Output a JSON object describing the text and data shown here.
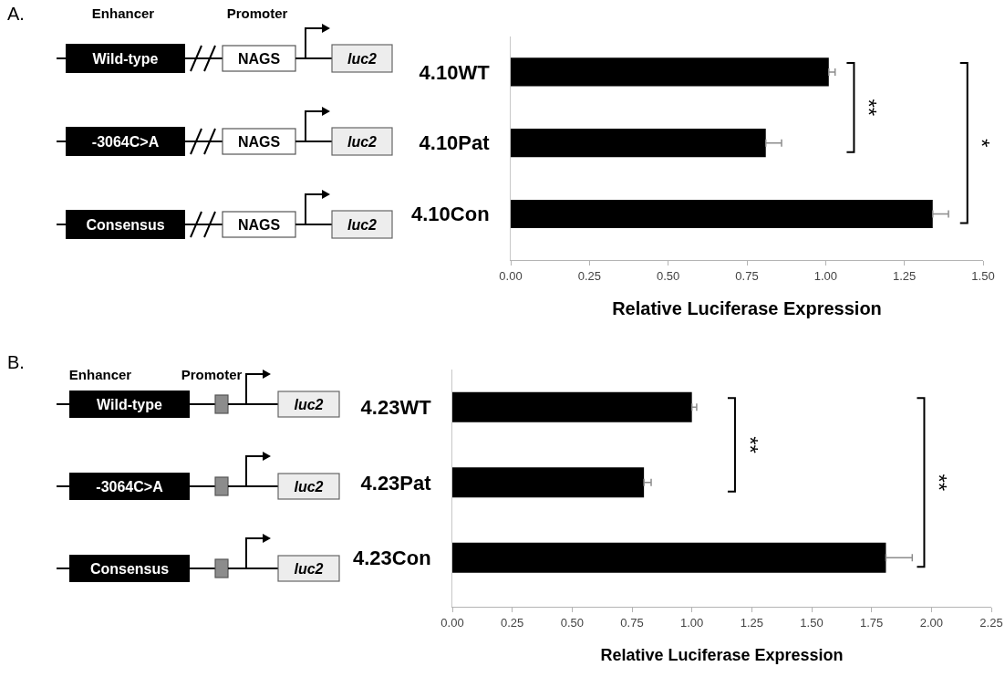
{
  "chart_data": [
    {
      "type": "bar",
      "orientation": "horizontal",
      "categories": [
        "4.10WT",
        "4.10Pat",
        "4.10Con"
      ],
      "values": [
        1.01,
        0.81,
        1.34
      ],
      "color": "#000000",
      "errors": [
        [
          1.01,
          1.03
        ],
        [
          0.81,
          0.86
        ],
        [
          1.34,
          1.39
        ]
      ],
      "xlim": [
        0,
        1.5
      ],
      "xticks": [
        {
          "value": 0,
          "label": "0.00"
        },
        {
          "value": 0.25,
          "label": "0.25"
        },
        {
          "value": 0.5,
          "label": "0.50"
        },
        {
          "value": 0.75,
          "label": "0.75"
        },
        {
          "value": 1,
          "label": "1.00"
        },
        {
          "value": 1.25,
          "label": "1.25"
        },
        {
          "value": 1.5,
          "label": "1.50"
        }
      ],
      "xlabel": "Relative Luciferase Expression",
      "annotations": [
        "A.",
        "Enhancer",
        "Promoter",
        "Wild-type",
        "-3064C>A",
        "Consensus",
        "NAGS",
        "luc2",
        "**",
        "*"
      ]
    },
    {
      "type": "bar",
      "orientation": "horizontal",
      "categories": [
        "4.23WT",
        "4.23Pat",
        "4.23Con"
      ],
      "values": [
        1.0,
        0.8,
        1.81
      ],
      "color": "#000000",
      "errors": [
        [
          1.0,
          1.02
        ],
        [
          0.8,
          0.83
        ],
        [
          1.81,
          1.92
        ]
      ],
      "xlim": [
        0,
        2.25
      ],
      "xticks": [
        {
          "value": 0,
          "label": "0.00"
        },
        {
          "value": 0.25,
          "label": "0.25"
        },
        {
          "value": 0.5,
          "label": "0.50"
        },
        {
          "value": 0.75,
          "label": "0.75"
        },
        {
          "value": 1,
          "label": "1.00"
        },
        {
          "value": 1.25,
          "label": "1.25"
        },
        {
          "value": 1.5,
          "label": "1.50"
        },
        {
          "value": 1.75,
          "label": "1.75"
        },
        {
          "value": 2,
          "label": "2.00"
        },
        {
          "value": 2.25,
          "label": "2.25"
        }
      ],
      "xlabel": "Relative Luciferase Expression",
      "annotations": [
        "B.",
        "Enhancer",
        "Promoter",
        "Wild-type",
        "-3064C>A",
        "Consensus",
        "luc2",
        "**",
        "**"
      ]
    }
  ]
}
